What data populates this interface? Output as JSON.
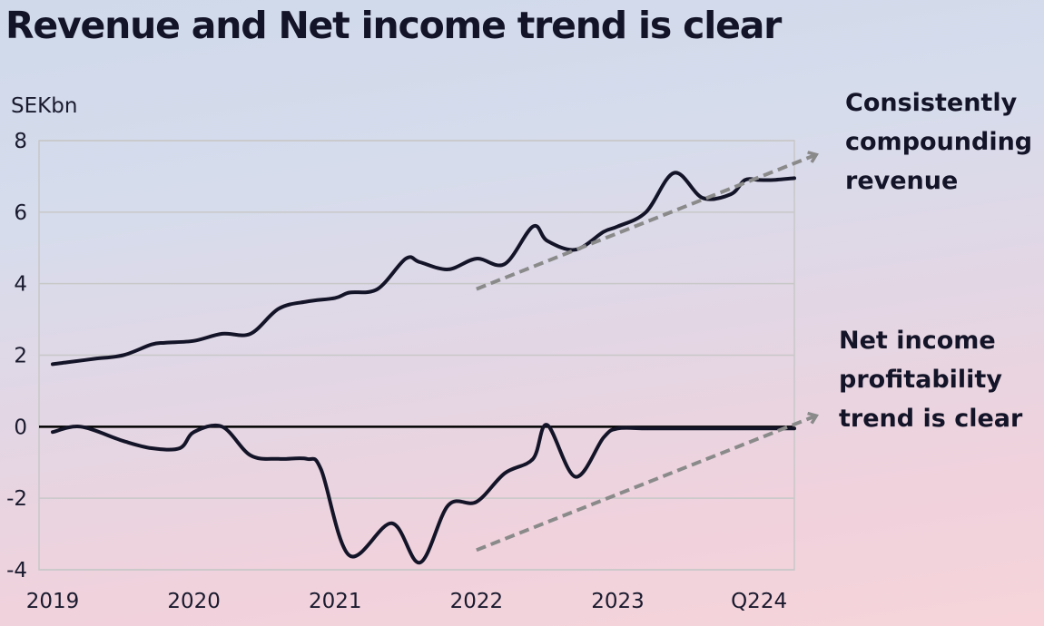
{
  "title": "Revenue and Net income trend is clear",
  "unit_label": "SEKbn",
  "callouts": {
    "revenue": [
      "Consistently",
      "compounding",
      "revenue"
    ],
    "net_income": [
      "Net income",
      "profitability",
      "trend is clear"
    ]
  },
  "colors": {
    "line": "#141428",
    "trend_arrow": "#8a8a8a",
    "grid": "#c8c8c8",
    "zero_line": "#000000"
  },
  "chart_data": {
    "type": "line",
    "title": "Revenue and Net income trend is clear",
    "ylabel": "SEKbn",
    "ylim": [
      -4,
      8
    ],
    "yticks": [
      8,
      6,
      4,
      2,
      0,
      -2,
      -4
    ],
    "grid": true,
    "x_tick_labels": [
      "2019",
      "2020",
      "2021",
      "2022",
      "2023",
      "Q224"
    ],
    "x_tick_positions": [
      2019.0,
      2020.0,
      2021.0,
      2022.0,
      2023.0,
      2024.0
    ],
    "x_range": [
      2019.0,
      2024.25
    ],
    "series": [
      {
        "x": [
          2019.0,
          2019.1,
          2019.3,
          2019.5,
          2019.7,
          2019.8,
          2020.0,
          2020.2,
          2020.4,
          2020.6,
          2020.8,
          2021.0,
          2021.1,
          2021.3,
          2021.5,
          2021.6,
          2021.8,
          2022.0,
          2022.2,
          2022.4,
          2022.5,
          2022.7,
          2022.9,
          2023.0,
          2023.2,
          2023.4,
          2023.6,
          2023.8,
          2023.9,
          2024.0,
          2024.1,
          2024.25
        ],
        "y": [
          1.75,
          1.8,
          1.9,
          2.0,
          2.3,
          2.35,
          2.4,
          2.6,
          2.6,
          3.3,
          3.5,
          3.6,
          3.75,
          3.85,
          4.7,
          4.6,
          4.4,
          4.7,
          4.55,
          5.6,
          5.2,
          4.95,
          5.45,
          5.6,
          6.0,
          7.1,
          6.4,
          6.5,
          6.9,
          6.9,
          6.9,
          6.95
        ]
      },
      {
        "x": [
          2019.0,
          2019.2,
          2019.5,
          2019.7,
          2019.9,
          2020.0,
          2020.2,
          2020.4,
          2020.6,
          2020.8,
          2020.9,
          2021.1,
          2021.4,
          2021.6,
          2021.8,
          2022.0,
          2022.2,
          2022.4,
          2022.5,
          2022.7,
          2022.9,
          2023.0,
          2023.2,
          2023.4,
          2023.5,
          2023.7,
          2023.9,
          2024.0,
          2024.1,
          2024.25
        ],
        "y": [
          -0.15,
          0.0,
          -0.4,
          -0.6,
          -0.6,
          -0.15,
          0.0,
          -0.8,
          -0.9,
          -0.9,
          -1.2,
          -3.6,
          -2.7,
          -3.8,
          -2.2,
          -2.1,
          -1.3,
          -0.9,
          0.05,
          -1.4,
          -0.3,
          -0.05,
          -0.05,
          -0.05,
          -0.05,
          -0.05,
          -0.05,
          -0.05,
          -0.05,
          -0.05
        ]
      }
    ],
    "trend_arrows": [
      {
        "from": [
          2022.0,
          3.85
        ],
        "to": [
          2024.4,
          7.6
        ]
      },
      {
        "from": [
          2022.0,
          -3.45
        ],
        "to": [
          2024.4,
          0.3
        ]
      }
    ]
  }
}
